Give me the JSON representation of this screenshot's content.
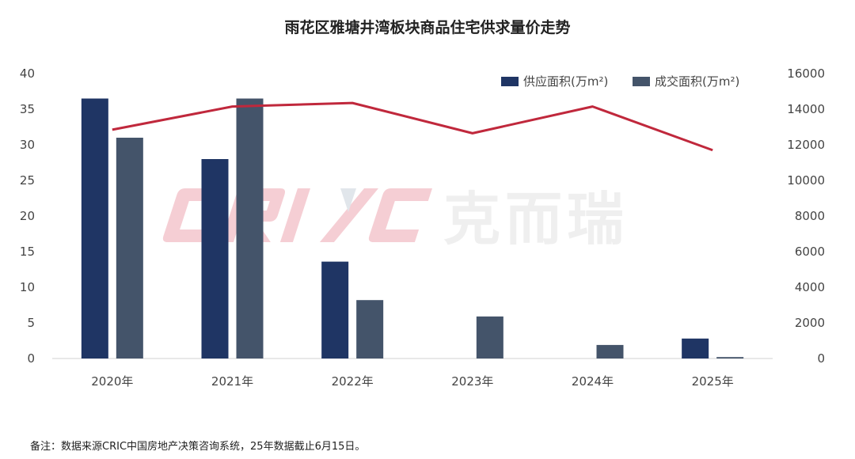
{
  "chart_data": {
    "type": "bar",
    "title": "雨花区雅塘井湾板块商品住宅供求量价走势",
    "categories": [
      "2020年",
      "2021年",
      "2022年",
      "2023年",
      "2024年",
      "2025年"
    ],
    "series": [
      {
        "name": "供应面积(万m²)",
        "type": "bar",
        "axis": "left",
        "color": "#1f3564",
        "values": [
          36.5,
          28,
          13.6,
          0,
          0,
          2.8
        ]
      },
      {
        "name": "成交面积(万m²)",
        "type": "bar",
        "axis": "left",
        "color": "#44546a",
        "values": [
          31,
          36.5,
          8.2,
          5.9,
          1.9,
          0.2
        ]
      },
      {
        "name": "",
        "type": "line",
        "axis": "right",
        "color": "#c0283c",
        "values": [
          12850,
          14150,
          14350,
          12650,
          14150,
          11700
        ]
      }
    ],
    "y_left": {
      "ylim": [
        0,
        40
      ],
      "ticks": [
        "0",
        "5",
        "10",
        "15",
        "20",
        "25",
        "30",
        "35",
        "40"
      ]
    },
    "y_right": {
      "ylim": [
        0,
        16000
      ],
      "ticks": [
        "0",
        "2000",
        "4000",
        "6000",
        "8000",
        "10000",
        "12000",
        "14000",
        "16000"
      ]
    },
    "legend_position": "top-right",
    "grid": false
  },
  "watermark": {
    "text": "CRIC 克而瑞",
    "color": "#f2c9cf"
  },
  "footnote": "备注：数据来源CRIC中国房地产决策咨询系统，25年数据截止6月15日。"
}
